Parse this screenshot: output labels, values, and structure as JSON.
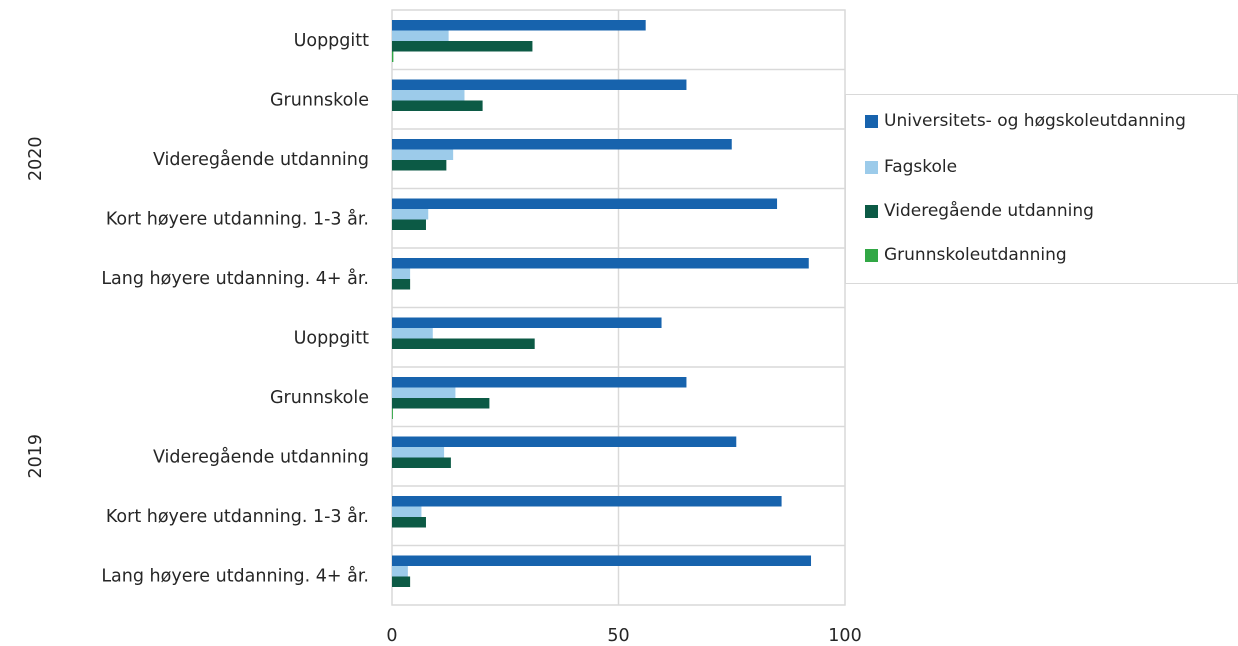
{
  "chart_data": {
    "type": "bar",
    "orientation": "horizontal",
    "groups": [
      {
        "label": "2020",
        "categories": [
          "Uoppgitt",
          "Grunnskole",
          "Videregående utdanning",
          "Kort høyere utdanning. 1-3 år.",
          "Lang høyere utdanning. 4+ år."
        ]
      },
      {
        "label": "2019",
        "categories": [
          "Uoppgitt",
          "Grunnskole",
          "Videregående utdanning",
          "Kort høyere utdanning. 1-3 år.",
          "Lang høyere utdanning. 4+ år."
        ]
      }
    ],
    "series": [
      {
        "name": "Universitets- og høgskoleutdanning",
        "color": "#1763ad",
        "values": [
          56,
          65,
          75,
          85,
          92,
          59.5,
          65,
          76,
          86,
          92.5
        ]
      },
      {
        "name": "Fagskole",
        "color": "#9ccbea",
        "values": [
          12.5,
          16,
          13.5,
          8,
          4,
          9,
          14,
          11.5,
          6.5,
          3.5
        ]
      },
      {
        "name": "Videregående utdanning",
        "color": "#0c5a45",
        "values": [
          31,
          20,
          12,
          7.5,
          4,
          31.5,
          21.5,
          13,
          7.5,
          4
        ]
      },
      {
        "name": "Grunnskoleutdanning",
        "color": "#31a745",
        "values": [
          0.3,
          0,
          0,
          0,
          0,
          0,
          0.2,
          0,
          0,
          0
        ]
      }
    ],
    "xlim": [
      0,
      100
    ],
    "xticks": [
      "0",
      "50",
      "100"
    ],
    "grid": true,
    "legend_position": "right"
  }
}
